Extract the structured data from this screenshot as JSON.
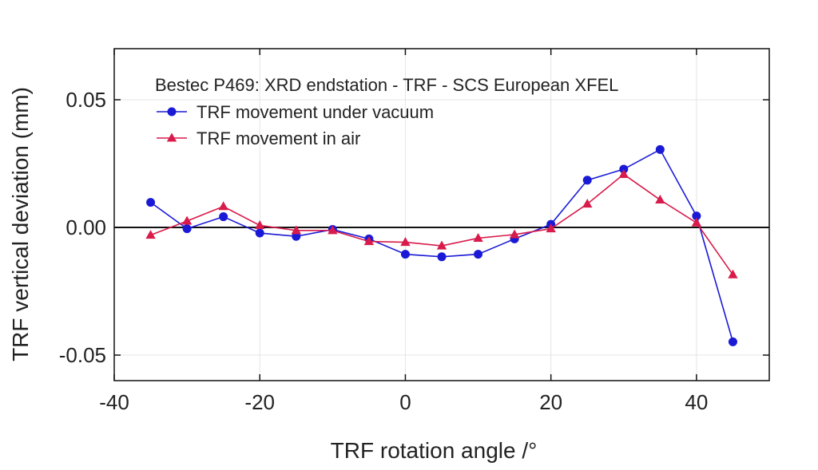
{
  "chart_data": {
    "type": "line",
    "title": "Bestec P469: XRD endstation - TRF - SCS European XFEL",
    "xlabel": "TRF rotation angle /°",
    "ylabel": "TRF vertical deviation (mm)",
    "xlim": [
      -40,
      50
    ],
    "ylim": [
      -0.06,
      0.07
    ],
    "xticks": [
      -40,
      -20,
      0,
      20,
      40
    ],
    "xtick_labels": [
      "-40",
      "-20",
      "0",
      "20",
      "40"
    ],
    "yticks": [
      -0.05,
      0.0,
      0.05
    ],
    "ytick_labels": [
      "-0.05",
      "0.00",
      "0.05"
    ],
    "grid": true,
    "zero_line": true,
    "legend_position": "top-left",
    "series": [
      {
        "name": "TRF movement under vacuum",
        "color": "#1a1ad6",
        "marker": "circle",
        "x": [
          -35,
          -30,
          -25,
          -20,
          -15,
          -10,
          -5,
          0,
          5,
          10,
          15,
          20,
          25,
          30,
          35,
          40,
          45
        ],
        "y": [
          0.0098,
          -0.0005,
          0.0042,
          -0.0022,
          -0.0035,
          -0.0008,
          -0.0045,
          -0.0105,
          -0.0115,
          -0.0105,
          -0.0045,
          0.0012,
          0.0185,
          0.0228,
          0.0305,
          0.0045,
          -0.0448
        ]
      },
      {
        "name": "TRF movement in air",
        "color": "#d81b4a",
        "marker": "triangle",
        "x": [
          -35,
          -30,
          -25,
          -20,
          -15,
          -10,
          -5,
          0,
          5,
          10,
          15,
          20,
          25,
          30,
          35,
          40,
          45
        ],
        "y": [
          -0.003,
          0.0025,
          0.0082,
          0.0008,
          -0.0012,
          -0.0012,
          -0.0055,
          -0.0058,
          -0.0072,
          -0.0042,
          -0.0028,
          -0.0005,
          0.0092,
          0.0208,
          0.0108,
          0.0018,
          -0.0185
        ]
      }
    ]
  }
}
